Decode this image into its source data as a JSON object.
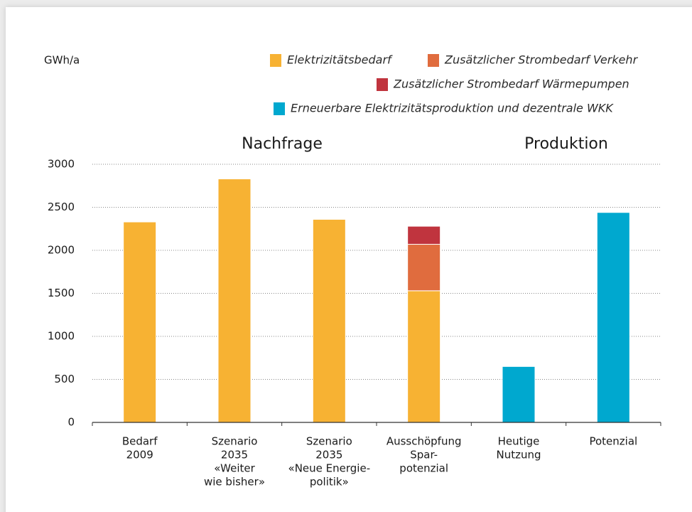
{
  "chart_data": {
    "type": "stacked_bar",
    "y_label": "GWh/a",
    "annotations": [
      "Nachfrage",
      "Produktion"
    ],
    "categories": [
      [
        "Bedarf",
        "2009"
      ],
      [
        "Szenario",
        "2035",
        "«Weiter",
        "wie bisher»"
      ],
      [
        "Szenario",
        "2035",
        "«Neue Energie-",
        "politik»"
      ],
      [
        "Ausschöpfung",
        "Spar-",
        "potenzial"
      ],
      [
        "Heutige",
        "Nutzung"
      ],
      [
        "Potenzial"
      ]
    ],
    "series": [
      {
        "name": "Elektrizitätsbedarf",
        "color": "#f7b233",
        "values": [
          2330,
          2830,
          2360,
          1530,
          null,
          null
        ]
      },
      {
        "name": "Zusätzlicher Strombedarf Verkehr",
        "color": "#e06c3e",
        "values": [
          null,
          null,
          null,
          540,
          null,
          null
        ]
      },
      {
        "name": "Zusätzlicher Strombedarf Wärmepumpen",
        "color": "#c0343e",
        "values": [
          null,
          null,
          null,
          210,
          null,
          null
        ]
      },
      {
        "name": "Erneuerbare Elektrizitätsproduktion und dezentrale WKK",
        "color": "#00a8cf",
        "values": [
          null,
          null,
          null,
          null,
          650,
          2440
        ]
      }
    ],
    "ylim": [
      0,
      3000
    ],
    "yticks": [
      0,
      500,
      1000,
      1500,
      2000,
      2500,
      3000
    ],
    "grid": true
  }
}
